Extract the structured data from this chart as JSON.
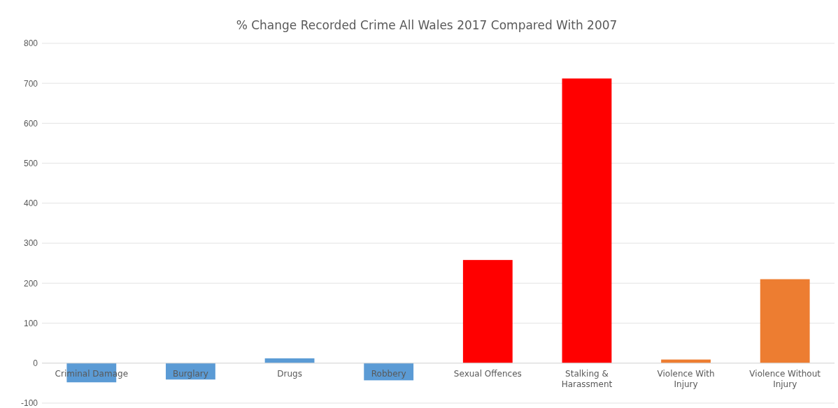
{
  "chart_data": {
    "type": "bar",
    "title": "% Change Recorded Crime All Wales 2017 Compared With 2007",
    "categories": [
      "Criminal Damage",
      "Burglary",
      "Drugs",
      "Robbery",
      "Sexual Offences",
      "Stalking & Harassment",
      "Violence With Injury",
      "Violence Without Injury"
    ],
    "values": [
      -48,
      -41,
      12,
      -43,
      258,
      712,
      9,
      210
    ],
    "colors": [
      "#5b9bd5",
      "#5b9bd5",
      "#5b9bd5",
      "#5b9bd5",
      "#ff0000",
      "#ff0000",
      "#ed7d31",
      "#ed7d31"
    ],
    "ylim": [
      -100,
      800
    ],
    "yticks": [
      -100,
      0,
      100,
      200,
      300,
      400,
      500,
      600,
      700,
      800
    ],
    "grid": "y"
  }
}
